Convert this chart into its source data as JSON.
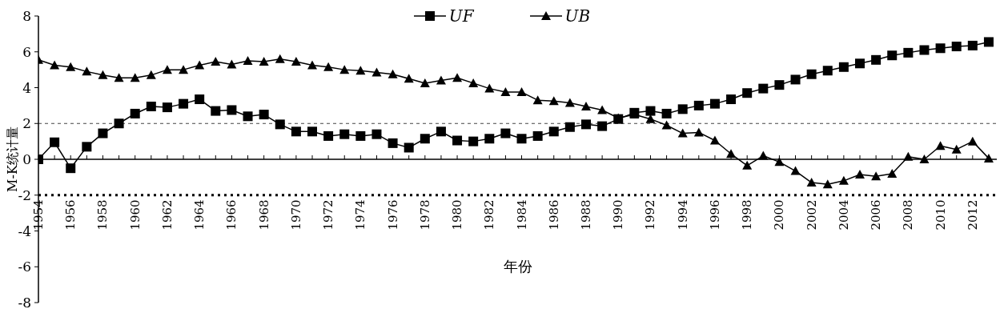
{
  "chart_data": {
    "type": "line",
    "xlabel": "年份",
    "ylabel": "M-K统计量",
    "x": [
      1954,
      1955,
      1956,
      1957,
      1958,
      1959,
      1960,
      1961,
      1962,
      1963,
      1964,
      1965,
      1966,
      1967,
      1968,
      1969,
      1970,
      1971,
      1972,
      1973,
      1974,
      1975,
      1976,
      1977,
      1978,
      1979,
      1980,
      1981,
      1982,
      1983,
      1984,
      1985,
      1986,
      1987,
      1988,
      1989,
      1990,
      1991,
      1992,
      1993,
      1994,
      1995,
      1996,
      1997,
      1998,
      1999,
      2000,
      2001,
      2002,
      2003,
      2004,
      2005,
      2006,
      2007,
      2008,
      2009,
      2010,
      2011,
      2012,
      2013
    ],
    "series": [
      {
        "name": "UF",
        "color": "#000000",
        "marker": "square",
        "values": [
          0,
          0.95,
          -0.5,
          0.7,
          1.45,
          2.0,
          2.55,
          2.95,
          2.9,
          3.1,
          3.35,
          2.7,
          2.75,
          2.4,
          2.5,
          1.95,
          1.55,
          1.55,
          1.3,
          1.4,
          1.3,
          1.4,
          0.9,
          0.65,
          1.15,
          1.55,
          1.05,
          1.0,
          1.15,
          1.45,
          1.15,
          1.3,
          1.55,
          1.8,
          1.95,
          1.85,
          2.25,
          2.6,
          2.7,
          2.55,
          2.8,
          3.0,
          3.1,
          3.35,
          3.7,
          3.95,
          4.15,
          4.45,
          4.75,
          4.95,
          5.15,
          5.35,
          5.55,
          5.8,
          5.95,
          6.1,
          6.2,
          6.3,
          6.35,
          6.55
        ]
      },
      {
        "name": "UB",
        "color": "#000000",
        "marker": "triangle",
        "values": [
          5.55,
          5.25,
          5.15,
          4.9,
          4.7,
          4.55,
          4.55,
          4.7,
          5.0,
          5.0,
          5.25,
          5.45,
          5.3,
          5.5,
          5.45,
          5.6,
          5.45,
          5.25,
          5.15,
          5.0,
          4.95,
          4.85,
          4.75,
          4.5,
          4.25,
          4.4,
          4.55,
          4.25,
          3.95,
          3.75,
          3.75,
          3.3,
          3.25,
          3.15,
          2.95,
          2.75,
          2.3,
          2.5,
          2.25,
          1.9,
          1.45,
          1.5,
          1.05,
          0.3,
          -0.35,
          0.2,
          -0.15,
          -0.65,
          -1.3,
          -1.4,
          -1.2,
          -0.85,
          -0.95,
          -0.8,
          0.15,
          0.0,
          0.75,
          0.55,
          1.0,
          0.05
        ]
      }
    ],
    "xlim": [
      1954,
      2013.5
    ],
    "xticks": [
      1954,
      {
        "value": 1955,
        "label": null
      },
      1956,
      {
        "value": 1957,
        "label": null
      },
      1958,
      {
        "value": 1959,
        "label": null
      },
      1960,
      {
        "value": 1961,
        "label": null
      },
      1962,
      {
        "value": 1963,
        "label": null
      },
      1964,
      {
        "value": 1965,
        "label": null
      },
      1966,
      {
        "value": 1967,
        "label": null
      },
      1968,
      {
        "value": 1969,
        "label": null
      },
      1970,
      {
        "value": 1971,
        "label": null
      },
      1972,
      {
        "value": 1973,
        "label": null
      },
      1974,
      {
        "value": 1975,
        "label": null
      },
      1976,
      {
        "value": 1977,
        "label": null
      },
      1978,
      {
        "value": 1979,
        "label": null
      },
      1980,
      {
        "value": 1981,
        "label": null
      },
      1982,
      {
        "value": 1983,
        "label": null
      },
      1984,
      {
        "value": 1985,
        "label": null
      },
      1986,
      {
        "value": 1987,
        "label": null
      },
      1988,
      {
        "value": 1989,
        "label": null
      },
      1990,
      {
        "value": 1991,
        "label": null
      },
      1992,
      {
        "value": 1993,
        "label": null
      },
      1994,
      {
        "value": 1995,
        "label": null
      },
      1996,
      {
        "value": 1997,
        "label": null
      },
      1998,
      {
        "value": 1999,
        "label": null
      },
      2000,
      {
        "value": 2001,
        "label": null
      },
      2002,
      {
        "value": 2003,
        "label": null
      },
      2004,
      {
        "value": 2005,
        "label": null
      },
      2006,
      {
        "value": 2007,
        "label": null
      },
      2008,
      {
        "value": 2009,
        "label": null
      },
      2010,
      {
        "value": 2011,
        "label": null
      },
      2012
    ],
    "ylim": [
      -8,
      8
    ],
    "yticks": [
      -8,
      -6,
      -4,
      -2,
      0,
      2,
      4,
      6,
      8
    ],
    "ref_lines": [
      {
        "axis": "y",
        "value": 2,
        "color": "#444444",
        "line_style": "dashed"
      },
      {
        "axis": "y",
        "value": -2,
        "color": "#000000",
        "line_style": "dotted"
      }
    ],
    "grid": false,
    "legend": "top",
    "line_style": "solid"
  }
}
